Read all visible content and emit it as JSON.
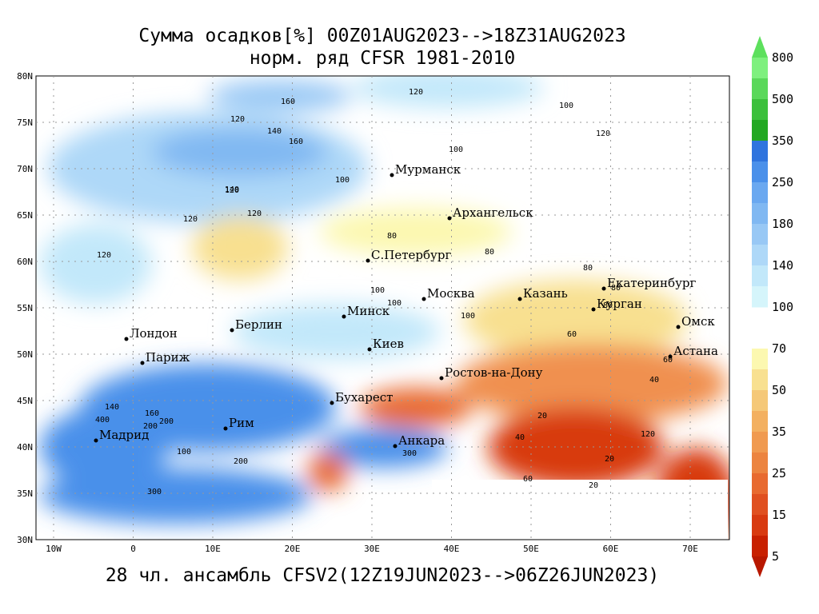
{
  "title": [
    "Сумма осадков[%] 00Z01AUG2023-->18Z31AUG2023",
    "норм. ряд CFSR 1981-2010"
  ],
  "footer": "28 чл. ансамбль CFSV2(12Z19JUN2023-->06Z26JUN2023)",
  "map": {
    "lat_labels": [
      "80N",
      "75N",
      "70N",
      "65N",
      "60N",
      "55N",
      "50N",
      "45N",
      "40N",
      "35N",
      "30N"
    ],
    "lon_labels": [
      "10W",
      "0",
      "10E",
      "20E",
      "30E",
      "40E",
      "50E",
      "60E",
      "70E"
    ],
    "cities": [
      "Мурманск",
      "Архангельск",
      "С.Петербург",
      "Москва",
      "Казань",
      "Екатеринбург",
      "Курган",
      "Омск",
      "Астана",
      "Минск",
      "Берлин",
      "Лондон",
      "Париж",
      "Киев",
      "Ростов-на-Дону",
      "Бухарест",
      "Рим",
      "Мадрид",
      "Анкара"
    ],
    "contour_labels": [
      120,
      160,
      120,
      100,
      140,
      160,
      100,
      100,
      120,
      120,
      140,
      120,
      120,
      120,
      80,
      80,
      100,
      80,
      100,
      100,
      80,
      80,
      60,
      60,
      40,
      20,
      20,
      140,
      160,
      200,
      400,
      200,
      300,
      200,
      100,
      300,
      60,
      40,
      20,
      120
    ]
  },
  "colorbar": {
    "labels": [
      "800",
      "500",
      "350",
      "250",
      "180",
      "140",
      "100",
      "70",
      "50",
      "35",
      "25",
      "15",
      "5"
    ]
  }
}
